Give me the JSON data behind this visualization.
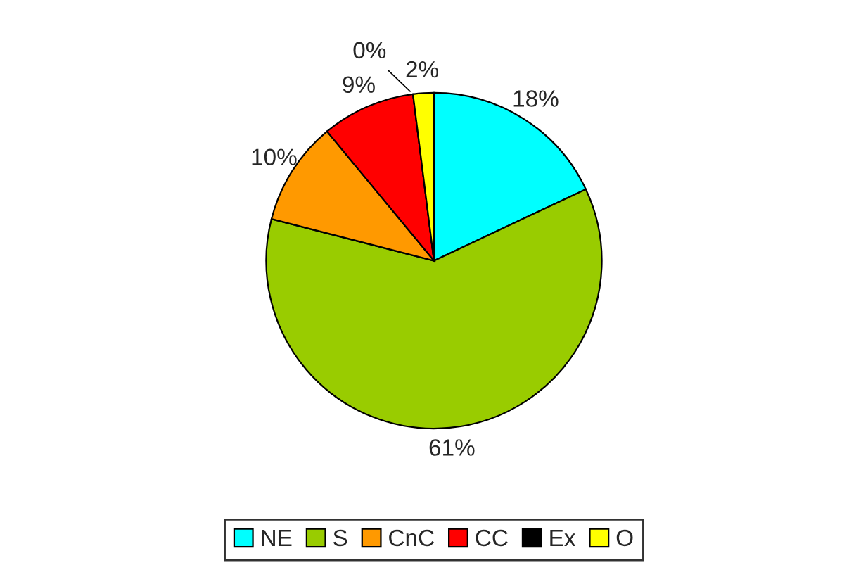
{
  "chart_data": {
    "type": "pie",
    "categories": [
      "NE",
      "S",
      "CnC",
      "CC",
      "Ex",
      "O"
    ],
    "values": [
      18,
      61,
      10,
      9,
      0,
      2
    ],
    "colors": [
      "#00ffff",
      "#99cc00",
      "#ff9900",
      "#ff0000",
      "#000000",
      "#ffff00"
    ],
    "value_labels": [
      "18%",
      "61%",
      "10%",
      "9%",
      "0%",
      "2%"
    ],
    "legend": "bottom"
  }
}
